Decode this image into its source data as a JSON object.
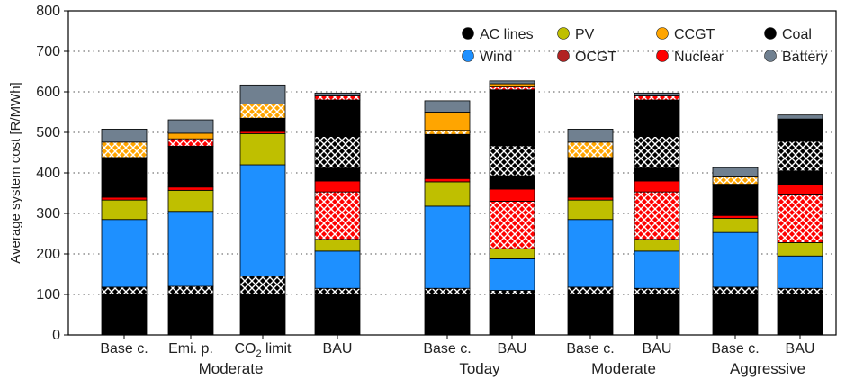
{
  "chart_data": {
    "type": "bar",
    "stacked": true,
    "xlabel": "",
    "ylabel": "Average system cost [R/MWh]",
    "ylim": [
      0,
      800
    ],
    "yticks": [
      0,
      100,
      200,
      300,
      400,
      500,
      600,
      700,
      800
    ],
    "grid": "horizontal dotted",
    "legend_position": "top-right",
    "legend": [
      {
        "name": "AC lines",
        "color": "#000000"
      },
      {
        "name": "PV",
        "color": "#bfbf00"
      },
      {
        "name": "CCGT",
        "color": "#ffa500"
      },
      {
        "name": "Coal",
        "color": "#000000"
      },
      {
        "name": "Wind",
        "color": "#1e90ff"
      },
      {
        "name": "OCGT",
        "color": "#b22222"
      },
      {
        "name": "Nuclear",
        "color": "#ff0000"
      },
      {
        "name": "Battery",
        "color": "#708090"
      }
    ],
    "categories": [
      {
        "label": "Base c."
      },
      {
        "label": "Emi. p."
      },
      {
        "label": "CO",
        "sub": "2",
        "suffix": " limit"
      },
      {
        "label": "BAU"
      },
      {
        "label": "Base c."
      },
      {
        "label": "BAU"
      },
      {
        "label": "Base c."
      },
      {
        "label": "BAU"
      },
      {
        "label": "Base c."
      },
      {
        "label": "BAU"
      }
    ],
    "group_labels": [
      {
        "label": "Moderate",
        "bars": [
          0,
          3
        ]
      },
      {
        "label": "Today",
        "bars": [
          4,
          5
        ]
      },
      {
        "label": "Moderate",
        "bars": [
          6,
          7
        ]
      },
      {
        "label": "Aggressive",
        "bars": [
          8,
          9
        ]
      }
    ],
    "stacks": [
      {
        "bar": 0,
        "segments": [
          {
            "series": "AC lines",
            "from": 0,
            "to": 100,
            "hatched": false
          },
          {
            "series": "AC lines",
            "from": 100,
            "to": 118,
            "hatched": true
          },
          {
            "series": "Wind",
            "from": 118,
            "to": 285,
            "hatched": false
          },
          {
            "series": "PV",
            "from": 285,
            "to": 333,
            "hatched": false
          },
          {
            "series": "Nuclear",
            "from": 333,
            "to": 340,
            "hatched": false
          },
          {
            "series": "Coal",
            "from": 340,
            "to": 438,
            "hatched": false
          },
          {
            "series": "CCGT",
            "from": 438,
            "to": 476,
            "hatched": true
          },
          {
            "series": "Battery",
            "from": 476,
            "to": 508,
            "hatched": false
          }
        ]
      },
      {
        "bar": 1,
        "segments": [
          {
            "series": "AC lines",
            "from": 0,
            "to": 100,
            "hatched": false
          },
          {
            "series": "AC lines",
            "from": 100,
            "to": 120,
            "hatched": true
          },
          {
            "series": "Wind",
            "from": 120,
            "to": 305,
            "hatched": false
          },
          {
            "series": "PV",
            "from": 305,
            "to": 357,
            "hatched": false
          },
          {
            "series": "Nuclear",
            "from": 357,
            "to": 365,
            "hatched": false
          },
          {
            "series": "Coal",
            "from": 365,
            "to": 466,
            "hatched": false
          },
          {
            "series": "Nuclear",
            "from": 466,
            "to": 484,
            "hatched": true
          },
          {
            "series": "CCGT",
            "from": 484,
            "to": 498,
            "hatched": false
          },
          {
            "series": "Battery",
            "from": 498,
            "to": 531,
            "hatched": false
          }
        ]
      },
      {
        "bar": 2,
        "segments": [
          {
            "series": "AC lines",
            "from": 0,
            "to": 100,
            "hatched": false
          },
          {
            "series": "AC lines",
            "from": 100,
            "to": 145,
            "hatched": true
          },
          {
            "series": "Wind",
            "from": 145,
            "to": 420,
            "hatched": false
          },
          {
            "series": "PV",
            "from": 420,
            "to": 497,
            "hatched": false
          },
          {
            "series": "Nuclear",
            "from": 497,
            "to": 502,
            "hatched": false
          },
          {
            "series": "Coal",
            "from": 502,
            "to": 535,
            "hatched": false
          },
          {
            "series": "CCGT",
            "from": 535,
            "to": 570,
            "hatched": true
          },
          {
            "series": "Battery",
            "from": 570,
            "to": 617,
            "hatched": false
          }
        ]
      },
      {
        "bar": 3,
        "segments": [
          {
            "series": "AC lines",
            "from": 0,
            "to": 100,
            "hatched": false
          },
          {
            "series": "AC lines",
            "from": 100,
            "to": 115,
            "hatched": true
          },
          {
            "series": "Wind",
            "from": 115,
            "to": 207,
            "hatched": false
          },
          {
            "series": "PV",
            "from": 207,
            "to": 236,
            "hatched": false
          },
          {
            "series": "Nuclear",
            "from": 236,
            "to": 353,
            "hatched": true
          },
          {
            "series": "Nuclear",
            "from": 353,
            "to": 380,
            "hatched": false
          },
          {
            "series": "Coal",
            "from": 380,
            "to": 412,
            "hatched": false
          },
          {
            "series": "Coal",
            "from": 412,
            "to": 490,
            "hatched": true
          },
          {
            "series": "Coal",
            "from": 490,
            "to": 580,
            "hatched": false
          },
          {
            "series": "Nuclear",
            "from": 580,
            "to": 590,
            "hatched": true
          },
          {
            "series": "Battery",
            "from": 590,
            "to": 597,
            "hatched": false
          }
        ]
      },
      {
        "bar": 4,
        "segments": [
          {
            "series": "AC lines",
            "from": 0,
            "to": 100,
            "hatched": false
          },
          {
            "series": "AC lines",
            "from": 100,
            "to": 115,
            "hatched": true
          },
          {
            "series": "Wind",
            "from": 115,
            "to": 318,
            "hatched": false
          },
          {
            "series": "PV",
            "from": 318,
            "to": 378,
            "hatched": false
          },
          {
            "series": "Nuclear",
            "from": 378,
            "to": 386,
            "hatched": false
          },
          {
            "series": "Coal",
            "from": 386,
            "to": 495,
            "hatched": false
          },
          {
            "series": "CCGT",
            "from": 495,
            "to": 505,
            "hatched": true
          },
          {
            "series": "CCGT",
            "from": 505,
            "to": 550,
            "hatched": false
          },
          {
            "series": "Battery",
            "from": 550,
            "to": 578,
            "hatched": false
          }
        ]
      },
      {
        "bar": 5,
        "segments": [
          {
            "series": "AC lines",
            "from": 0,
            "to": 100,
            "hatched": false
          },
          {
            "series": "AC lines",
            "from": 100,
            "to": 110,
            "hatched": true
          },
          {
            "series": "Wind",
            "from": 110,
            "to": 188,
            "hatched": false
          },
          {
            "series": "PV",
            "from": 188,
            "to": 213,
            "hatched": false
          },
          {
            "series": "Nuclear",
            "from": 213,
            "to": 330,
            "hatched": true
          },
          {
            "series": "Nuclear",
            "from": 330,
            "to": 360,
            "hatched": false
          },
          {
            "series": "Coal",
            "from": 360,
            "to": 393,
            "hatched": false
          },
          {
            "series": "Coal",
            "from": 393,
            "to": 467,
            "hatched": true
          },
          {
            "series": "Coal",
            "from": 467,
            "to": 605,
            "hatched": false
          },
          {
            "series": "Nuclear",
            "from": 605,
            "to": 612,
            "hatched": true
          },
          {
            "series": "CCGT",
            "from": 612,
            "to": 620,
            "hatched": false
          },
          {
            "series": "Battery",
            "from": 620,
            "to": 627,
            "hatched": false
          }
        ]
      },
      {
        "bar": 6,
        "segments": [
          {
            "series": "AC lines",
            "from": 0,
            "to": 100,
            "hatched": false
          },
          {
            "series": "AC lines",
            "from": 100,
            "to": 118,
            "hatched": true
          },
          {
            "series": "Wind",
            "from": 118,
            "to": 285,
            "hatched": false
          },
          {
            "series": "PV",
            "from": 285,
            "to": 333,
            "hatched": false
          },
          {
            "series": "Nuclear",
            "from": 333,
            "to": 340,
            "hatched": false
          },
          {
            "series": "Coal",
            "from": 340,
            "to": 438,
            "hatched": false
          },
          {
            "series": "CCGT",
            "from": 438,
            "to": 476,
            "hatched": true
          },
          {
            "series": "Battery",
            "from": 476,
            "to": 508,
            "hatched": false
          }
        ]
      },
      {
        "bar": 7,
        "segments": [
          {
            "series": "AC lines",
            "from": 0,
            "to": 100,
            "hatched": false
          },
          {
            "series": "AC lines",
            "from": 100,
            "to": 115,
            "hatched": true
          },
          {
            "series": "Wind",
            "from": 115,
            "to": 207,
            "hatched": false
          },
          {
            "series": "PV",
            "from": 207,
            "to": 236,
            "hatched": false
          },
          {
            "series": "Nuclear",
            "from": 236,
            "to": 353,
            "hatched": true
          },
          {
            "series": "Nuclear",
            "from": 353,
            "to": 380,
            "hatched": false
          },
          {
            "series": "Coal",
            "from": 380,
            "to": 412,
            "hatched": false
          },
          {
            "series": "Coal",
            "from": 412,
            "to": 490,
            "hatched": true
          },
          {
            "series": "Coal",
            "from": 490,
            "to": 580,
            "hatched": false
          },
          {
            "series": "Nuclear",
            "from": 580,
            "to": 590,
            "hatched": true
          },
          {
            "series": "Battery",
            "from": 590,
            "to": 597,
            "hatched": false
          }
        ]
      },
      {
        "bar": 8,
        "segments": [
          {
            "series": "AC lines",
            "from": 0,
            "to": 100,
            "hatched": false
          },
          {
            "series": "AC lines",
            "from": 100,
            "to": 118,
            "hatched": true
          },
          {
            "series": "Wind",
            "from": 118,
            "to": 253,
            "hatched": false
          },
          {
            "series": "PV",
            "from": 253,
            "to": 288,
            "hatched": false
          },
          {
            "series": "Nuclear",
            "from": 288,
            "to": 295,
            "hatched": false
          },
          {
            "series": "Coal",
            "from": 295,
            "to": 372,
            "hatched": false
          },
          {
            "series": "CCGT",
            "from": 372,
            "to": 390,
            "hatched": true
          },
          {
            "series": "Battery",
            "from": 390,
            "to": 413,
            "hatched": false
          }
        ]
      },
      {
        "bar": 9,
        "segments": [
          {
            "series": "AC lines",
            "from": 0,
            "to": 100,
            "hatched": false
          },
          {
            "series": "AC lines",
            "from": 100,
            "to": 115,
            "hatched": true
          },
          {
            "series": "Wind",
            "from": 115,
            "to": 195,
            "hatched": false
          },
          {
            "series": "PV",
            "from": 195,
            "to": 228,
            "hatched": false
          },
          {
            "series": "Nuclear",
            "from": 228,
            "to": 348,
            "hatched": true
          },
          {
            "series": "Nuclear",
            "from": 348,
            "to": 372,
            "hatched": false
          },
          {
            "series": "Coal",
            "from": 372,
            "to": 405,
            "hatched": false
          },
          {
            "series": "Coal",
            "from": 405,
            "to": 478,
            "hatched": true
          },
          {
            "series": "Coal",
            "from": 478,
            "to": 533,
            "hatched": false
          },
          {
            "series": "Battery",
            "from": 533,
            "to": 543,
            "hatched": false
          }
        ]
      }
    ]
  }
}
